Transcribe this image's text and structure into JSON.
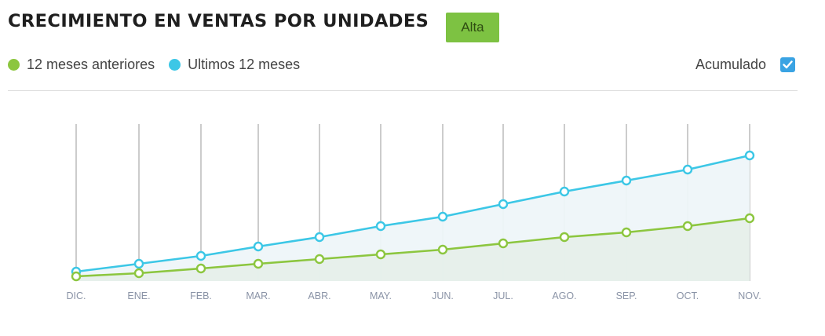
{
  "title": "CRECIMIENTO EN VENTAS POR UNIDADES",
  "badge_label": "Alta",
  "legend": {
    "prev_label": "12 meses anteriores",
    "last_label": "Ultimos 12 meses"
  },
  "accumulated": {
    "label": "Acumulado",
    "checked": true
  },
  "colors": {
    "prev": "#8cc63f",
    "last": "#3cc7e6",
    "badge": "#7dc242",
    "checkbox": "#3aa3e3"
  },
  "chart_data": {
    "type": "area",
    "categories": [
      "DIC.",
      "ENE.",
      "FEB.",
      "MAR.",
      "ABR.",
      "MAY.",
      "JUN.",
      "JUL.",
      "AGO.",
      "SEP.",
      "OCT.",
      "NOV."
    ],
    "series": [
      {
        "name": "Ultimos 12 meses",
        "values": [
          6,
          11,
          16,
          22,
          28,
          35,
          41,
          49,
          57,
          64,
          71,
          80
        ]
      },
      {
        "name": "12 meses anteriores",
        "values": [
          3,
          5,
          8,
          11,
          14,
          17,
          20,
          24,
          28,
          31,
          35,
          40
        ]
      }
    ],
    "ylim": [
      0,
      100
    ],
    "y_axis_shown": false,
    "grid": "vertical"
  }
}
